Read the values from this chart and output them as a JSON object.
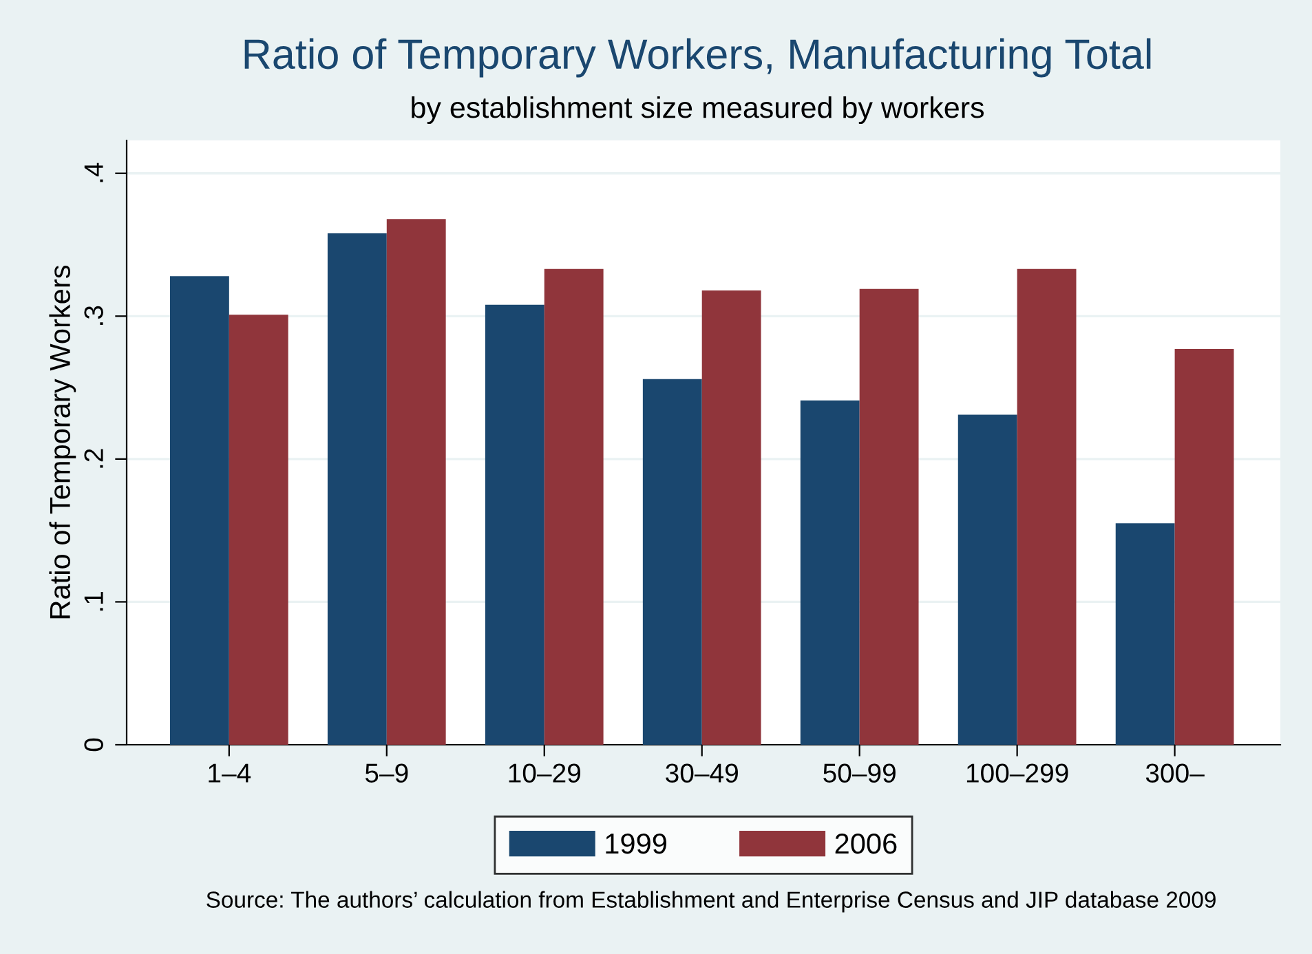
{
  "chart_data": {
    "type": "bar",
    "title": "Ratio of Temporary Workers, Manufacturing Total",
    "subtitle": "by establishment size measured by workers",
    "ylabel": "Ratio of Temporary Workers",
    "categories": [
      "1–4",
      "5–9",
      "10–29",
      "30–49",
      "50–99",
      "100–299",
      "300–"
    ],
    "series": [
      {
        "name": "1999",
        "color": "#1a476f",
        "values": [
          0.328,
          0.358,
          0.308,
          0.256,
          0.241,
          0.231,
          0.155
        ]
      },
      {
        "name": "2006",
        "color": "#90353b",
        "values": [
          0.301,
          0.368,
          0.333,
          0.318,
          0.319,
          0.333,
          0.277
        ]
      }
    ],
    "ylim": [
      0,
      0.423
    ],
    "yticks": [
      {
        "value": 0,
        "label": "0"
      },
      {
        "value": 0.1,
        "label": ".1"
      },
      {
        "value": 0.2,
        "label": ".2"
      },
      {
        "value": 0.3,
        "label": ".3"
      },
      {
        "value": 0.4,
        "label": ".4"
      }
    ],
    "grid": "y",
    "legend": "bottom",
    "annotations": [
      "Source: The authors’ calculation from Establishment and Enterprise Census and JIP database 2009"
    ]
  }
}
